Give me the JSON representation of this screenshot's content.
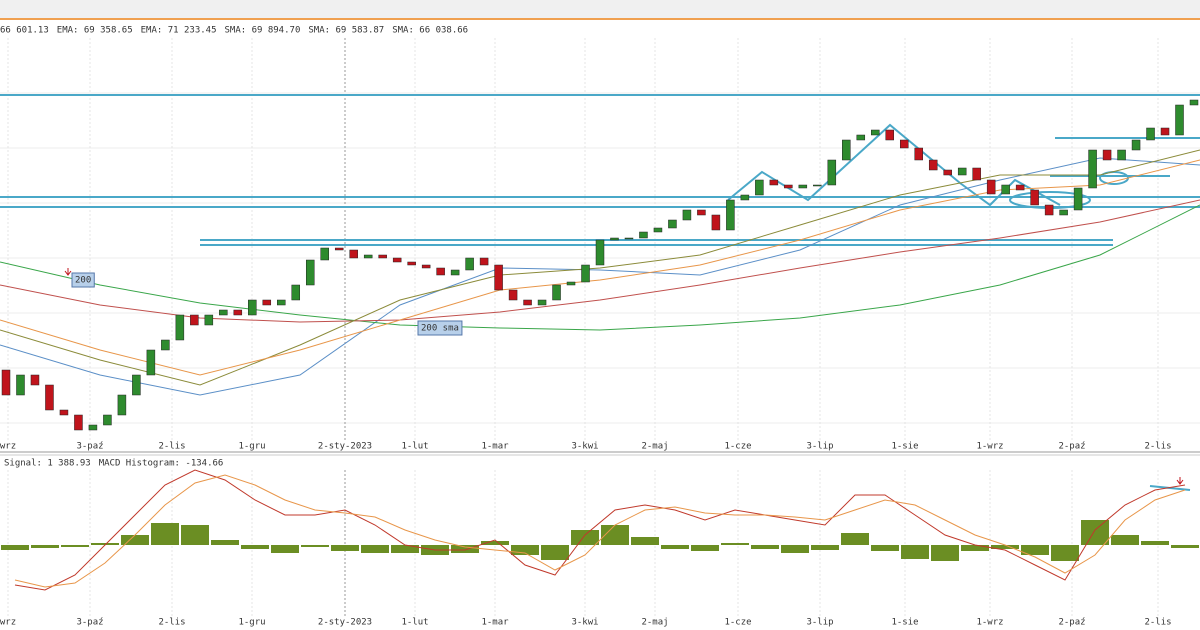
{
  "chart_data": [
    {
      "type": "candlestick",
      "legend": [
        {
          "text": "66 601.13",
          "color": "#2e8b57"
        },
        {
          "text": "EMA: 69 358.65",
          "color": "#d2691e"
        },
        {
          "text": "EMA: 71 233.45",
          "color": "#8b8b3a"
        },
        {
          "text": "SMA: 69 894.70",
          "color": "#4682b4"
        },
        {
          "text": "SMA: 69 583.87",
          "color": "#8b8b3a"
        },
        {
          "text": "SMA: 66 038.66",
          "color": "#2e8b57"
        }
      ],
      "x_labels": [
        "wrz",
        "3-paź",
        "2-lis",
        "1-gru",
        "2-sty-2023",
        "1-lut",
        "1-mar",
        "3-kwi",
        "2-maj",
        "1-cze",
        "3-lip",
        "1-sie",
        "1-wrz",
        "2-paź",
        "2-lis"
      ],
      "annotations": [
        "200",
        "200 sma"
      ],
      "up_color": "#2e8b2e",
      "down_color": "#c0141c",
      "ylim": [
        30000,
        71200
      ],
      "open": [
        38000,
        35500,
        37500,
        36500,
        34000,
        33500,
        32000,
        32500,
        33500,
        35500,
        37500,
        40000,
        41000,
        43500,
        42500,
        43500,
        44000,
        43500,
        45000,
        44500,
        45000,
        46500,
        49000,
        50200,
        50000,
        49200,
        49500,
        49200,
        48800,
        48500,
        48200,
        47500,
        48000,
        49200,
        48500,
        46000,
        45000,
        44500,
        45000,
        46500,
        46800,
        48500,
        51000,
        51200,
        51200,
        51800,
        52200,
        53000,
        54000,
        53500,
        52000,
        55000,
        55500,
        57000,
        56500,
        56200,
        56500,
        56500,
        59000,
        61000,
        61500,
        62000,
        61000,
        60200,
        59000,
        58000,
        57500,
        58200,
        57000,
        55600,
        56500,
        56000,
        54500,
        53500,
        54000,
        56200,
        60000,
        59000,
        60000,
        61000,
        62200,
        61500,
        64500
      ],
      "close": [
        35500,
        37500,
        36500,
        34000,
        33500,
        32000,
        32500,
        33500,
        35500,
        37500,
        40000,
        41000,
        43500,
        42500,
        43500,
        44000,
        43500,
        45000,
        44500,
        45000,
        46500,
        49000,
        50200,
        50000,
        49200,
        49500,
        49200,
        48800,
        48500,
        48200,
        47500,
        48000,
        49200,
        48500,
        46000,
        45000,
        44500,
        45000,
        46500,
        46800,
        48500,
        51000,
        51200,
        51200,
        51800,
        52200,
        53000,
        54000,
        53500,
        52000,
        55000,
        55500,
        57000,
        56500,
        56200,
        56500,
        56500,
        59000,
        61000,
        61500,
        62000,
        61000,
        60200,
        59000,
        58000,
        57500,
        58200,
        57000,
        55600,
        56500,
        56000,
        54500,
        53500,
        54000,
        56200,
        60000,
        59000,
        60000,
        61000,
        62200,
        61500,
        64500,
        65000
      ],
      "series": [
        {
          "color": "#5b8fc7",
          "values": [
            40500,
            37500,
            35500,
            37500,
            44500,
            48200,
            48000,
            47500,
            50000,
            54500,
            57000,
            59200,
            58500
          ]
        },
        {
          "color": "#3aa64a",
          "values": [
            48800,
            46500,
            44700,
            43500,
            42500,
            42200,
            42000,
            42500,
            43200,
            44500,
            46500,
            49500,
            54500
          ]
        },
        {
          "color": "#c0504d",
          "values": [
            46500,
            44500,
            43200,
            42800,
            43000,
            43800,
            45000,
            46500,
            48200,
            49800,
            51200,
            52800,
            55000
          ]
        },
        {
          "color": "#8b8b3a",
          "values": [
            42000,
            39000,
            36500,
            40500,
            45000,
            47500,
            48200,
            49500,
            52500,
            55500,
            57500,
            57500,
            60000
          ]
        },
        {
          "color": "#e8964a",
          "values": [
            43000,
            40000,
            37500,
            40000,
            43000,
            46000,
            47000,
            48500,
            51000,
            54000,
            56000,
            56500,
            59000
          ]
        }
      ]
    },
    {
      "type": "macd",
      "legend": [
        {
          "text": "Signal: 1 388.93",
          "color": "#e07b39"
        },
        {
          "text": "MACD Histogram: -134.66",
          "color": "#c0141c"
        }
      ],
      "x_labels": [
        "wrz",
        "3-paź",
        "2-lis",
        "1-gru",
        "2-sty-2023",
        "1-lut",
        "1-mar",
        "3-kwi",
        "2-maj",
        "1-cze",
        "3-lip",
        "1-sie",
        "1-wrz",
        "2-paź",
        "2-lis"
      ],
      "ylim": [
        -1700,
        1800
      ],
      "histogram": {
        "color": "#6b8e23",
        "values": [
          -100,
          -60,
          -40,
          40,
          200,
          440,
          400,
          100,
          -80,
          -160,
          -40,
          -120,
          -160,
          -160,
          -200,
          -160,
          80,
          -200,
          -300,
          300,
          400,
          160,
          -80,
          -120,
          40,
          -80,
          -160,
          -100,
          240,
          -120,
          -280,
          -320,
          -120,
          -80,
          -200,
          -320,
          500,
          200,
          80,
          -60
        ]
      },
      "series": [
        {
          "color": "#c0392b",
          "values": [
            -800,
            -900,
            -600,
            0,
            600,
            1200,
            1500,
            1300,
            900,
            600,
            600,
            700,
            400,
            0,
            -100,
            -100,
            100,
            -400,
            -600,
            200,
            700,
            800,
            700,
            500,
            700,
            600,
            500,
            400,
            1000,
            1000,
            600,
            200,
            0,
            -100,
            -400,
            -700,
            300,
            800,
            1100,
            1200
          ]
        },
        {
          "color": "#e8964a",
          "values": [
            -700,
            -840,
            -760,
            -360,
            200,
            800,
            1240,
            1400,
            1200,
            900,
            700,
            640,
            560,
            300,
            100,
            -40,
            -100,
            -160,
            -500,
            -200,
            400,
            700,
            760,
            640,
            600,
            600,
            560,
            500,
            700,
            900,
            800,
            500,
            200,
            0,
            -240,
            -560,
            -200,
            500,
            900,
            1100
          ]
        }
      ]
    }
  ]
}
